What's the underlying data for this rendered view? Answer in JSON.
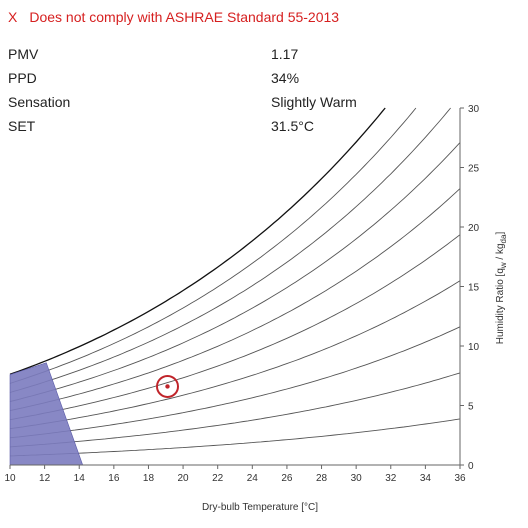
{
  "status": {
    "icon": "x-icon",
    "symbol": "X",
    "text": "Does not comply with ASHRAE Standard 55-2013",
    "color": "#d62020"
  },
  "results": [
    {
      "label": "PMV",
      "value": "1.17"
    },
    {
      "label": "PPD",
      "value": "34%"
    },
    {
      "label": "Sensation",
      "value": "Slightly Warm"
    },
    {
      "label": "SET",
      "value": "31.5°C"
    }
  ],
  "chart_data": {
    "type": "psychrometric",
    "xlabel": "Dry-bulb Temperature [°C]",
    "ylabel_main": "Humidity Ratio [q",
    "ylabel_sub1": "w",
    "ylabel_mid": " / kg",
    "ylabel_sub2": "da",
    "ylabel_end": "]",
    "xlim": [
      10,
      36
    ],
    "ylim": [
      0,
      30
    ],
    "x_ticks": [
      10,
      12,
      14,
      16,
      18,
      20,
      22,
      24,
      26,
      28,
      30,
      32,
      34,
      36
    ],
    "y_ticks": [
      0,
      5,
      10,
      15,
      20,
      25,
      30
    ],
    "rh_curves_percent": [
      10,
      20,
      30,
      40,
      50,
      60,
      70,
      80,
      90,
      100
    ],
    "comfort_zone": {
      "color": "#7b7bbf",
      "points": [
        [
          10,
          0
        ],
        [
          14.2,
          0
        ],
        [
          12.1,
          8.6
        ],
        [
          10,
          7.6
        ]
      ]
    },
    "current_point": {
      "x": 19.1,
      "y": 6.6,
      "color": "#c0242a"
    }
  }
}
